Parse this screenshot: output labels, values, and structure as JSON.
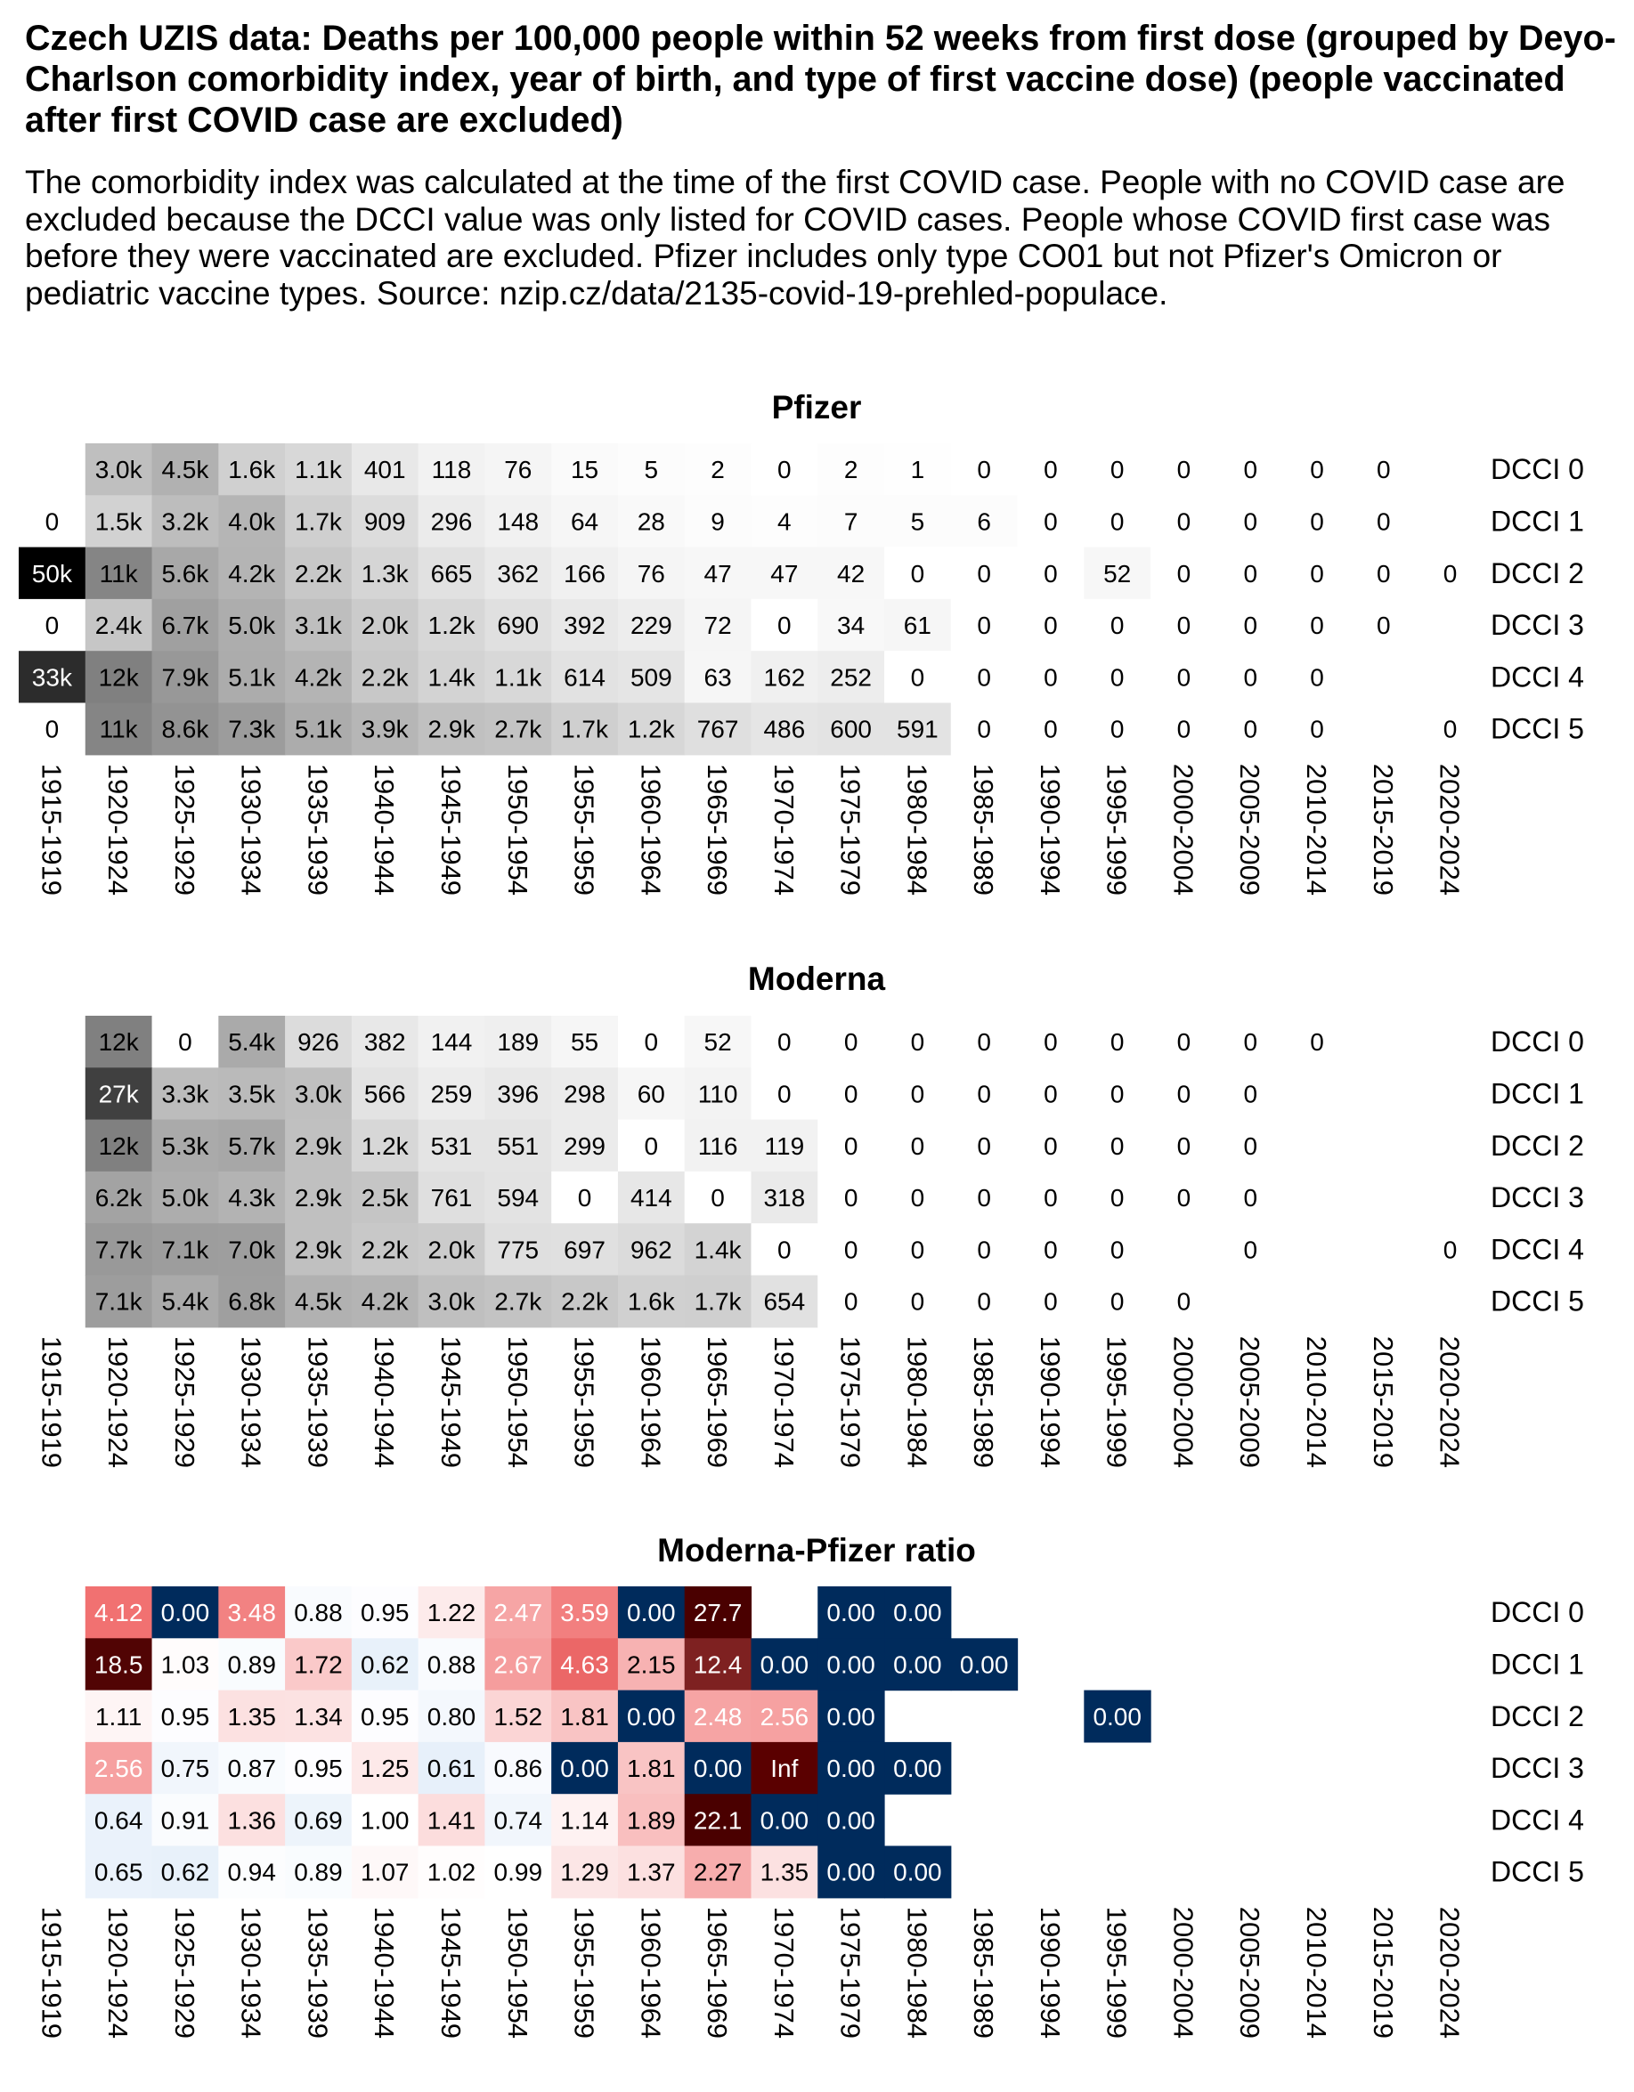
{
  "header": {
    "title": "Czech UZIS data: Deaths per 100,000 people within 52 weeks from first dose (grouped by Deyo-Charlson comorbidity index, year of birth, and type of first vaccine dose) (people vaccinated after first COVID case are excluded)",
    "subtitle": "The comorbidity index was calculated at the time of the first COVID case. People with no COVID case are excluded because the DCCI value was only listed for COVID cases. People whose COVID first case was before they were vaccinated are excluded. Pfizer includes only type CO01 but not Pfizer's Omicron or pediatric vaccine types. Source: nzip.cz/data/2135-covid-19-prehled-populace."
  },
  "chart_data": [
    {
      "type": "heatmap",
      "title": "Pfizer",
      "color_scale": {
        "type": "grayscale-sqrt",
        "low": "#ffffff",
        "high": "#000000",
        "max": 50000
      },
      "columns": [
        "1915-1919",
        "1920-1924",
        "1925-1929",
        "1930-1934",
        "1935-1939",
        "1940-1944",
        "1945-1949",
        "1950-1954",
        "1955-1959",
        "1960-1964",
        "1965-1969",
        "1970-1974",
        "1975-1979",
        "1980-1984",
        "1985-1989",
        "1990-1994",
        "1995-1999",
        "2000-2004",
        "2005-2009",
        "2010-2014",
        "2015-2019",
        "2020-2024"
      ],
      "rows": [
        "DCCI 0",
        "DCCI 1",
        "DCCI 2",
        "DCCI 3",
        "DCCI 4",
        "DCCI 5"
      ],
      "values": [
        [
          null,
          3000,
          4500,
          1600,
          1100,
          401,
          118,
          76,
          15,
          5,
          2,
          0,
          2,
          1,
          0,
          0,
          0,
          0,
          0,
          0,
          0,
          null
        ],
        [
          0,
          1500,
          3200,
          4000,
          1700,
          909,
          296,
          148,
          64,
          28,
          9,
          4,
          7,
          5,
          6,
          0,
          0,
          0,
          0,
          0,
          0,
          null
        ],
        [
          50000,
          11000,
          5600,
          4200,
          2200,
          1300,
          665,
          362,
          166,
          76,
          47,
          47,
          42,
          0,
          0,
          0,
          52,
          0,
          0,
          0,
          0,
          0
        ],
        [
          0,
          2400,
          6700,
          5000,
          3100,
          2000,
          1200,
          690,
          392,
          229,
          72,
          0,
          34,
          61,
          0,
          0,
          0,
          0,
          0,
          0,
          0,
          null
        ],
        [
          33000,
          12000,
          7900,
          5100,
          4200,
          2200,
          1400,
          1100,
          614,
          509,
          63,
          162,
          252,
          0,
          0,
          0,
          0,
          0,
          0,
          0,
          null,
          null
        ],
        [
          0,
          11000,
          8600,
          7300,
          5100,
          3900,
          2900,
          2700,
          1700,
          1200,
          767,
          486,
          600,
          591,
          0,
          0,
          0,
          0,
          0,
          0,
          null,
          0
        ]
      ],
      "labels": [
        [
          null,
          "3.0k",
          "4.5k",
          "1.6k",
          "1.1k",
          "401",
          "118",
          "76",
          "15",
          "5",
          "2",
          "0",
          "2",
          "1",
          "0",
          "0",
          "0",
          "0",
          "0",
          "0",
          "0",
          null
        ],
        [
          "0",
          "1.5k",
          "3.2k",
          "4.0k",
          "1.7k",
          "909",
          "296",
          "148",
          "64",
          "28",
          "9",
          "4",
          "7",
          "5",
          "6",
          "0",
          "0",
          "0",
          "0",
          "0",
          "0",
          null
        ],
        [
          "50k",
          "11k",
          "5.6k",
          "4.2k",
          "2.2k",
          "1.3k",
          "665",
          "362",
          "166",
          "76",
          "47",
          "47",
          "42",
          "0",
          "0",
          "0",
          "52",
          "0",
          "0",
          "0",
          "0",
          "0"
        ],
        [
          "0",
          "2.4k",
          "6.7k",
          "5.0k",
          "3.1k",
          "2.0k",
          "1.2k",
          "690",
          "392",
          "229",
          "72",
          "0",
          "34",
          "61",
          "0",
          "0",
          "0",
          "0",
          "0",
          "0",
          "0",
          null
        ],
        [
          "33k",
          "12k",
          "7.9k",
          "5.1k",
          "4.2k",
          "2.2k",
          "1.4k",
          "1.1k",
          "614",
          "509",
          "63",
          "162",
          "252",
          "0",
          "0",
          "0",
          "0",
          "0",
          "0",
          "0",
          null,
          null
        ],
        [
          "0",
          "11k",
          "8.6k",
          "7.3k",
          "5.1k",
          "3.9k",
          "2.9k",
          "2.7k",
          "1.7k",
          "1.2k",
          "767",
          "486",
          "600",
          "591",
          "0",
          "0",
          "0",
          "0",
          "0",
          "0",
          null,
          "0"
        ]
      ]
    },
    {
      "type": "heatmap",
      "title": "Moderna",
      "color_scale": {
        "type": "grayscale-sqrt",
        "low": "#ffffff",
        "high": "#000000",
        "max": 50000
      },
      "columns": [
        "1915-1919",
        "1920-1924",
        "1925-1929",
        "1930-1934",
        "1935-1939",
        "1940-1944",
        "1945-1949",
        "1950-1954",
        "1955-1959",
        "1960-1964",
        "1965-1969",
        "1970-1974",
        "1975-1979",
        "1980-1984",
        "1985-1989",
        "1990-1994",
        "1995-1999",
        "2000-2004",
        "2005-2009",
        "2010-2014",
        "2015-2019",
        "2020-2024"
      ],
      "rows": [
        "DCCI 0",
        "DCCI 1",
        "DCCI 2",
        "DCCI 3",
        "DCCI 4",
        "DCCI 5"
      ],
      "values": [
        [
          null,
          12000,
          0,
          5400,
          926,
          382,
          144,
          189,
          55,
          0,
          52,
          0,
          0,
          0,
          0,
          0,
          0,
          0,
          0,
          0,
          null,
          null
        ],
        [
          null,
          27000,
          3300,
          3500,
          3000,
          566,
          259,
          396,
          298,
          60,
          110,
          0,
          0,
          0,
          0,
          0,
          0,
          0,
          0,
          null,
          null,
          null
        ],
        [
          null,
          12000,
          5300,
          5700,
          2900,
          1200,
          531,
          551,
          299,
          0,
          116,
          119,
          0,
          0,
          0,
          0,
          0,
          0,
          0,
          null,
          null,
          null
        ],
        [
          null,
          6200,
          5000,
          4300,
          2900,
          2500,
          761,
          594,
          0,
          414,
          0,
          318,
          0,
          0,
          0,
          0,
          0,
          0,
          0,
          null,
          null,
          null
        ],
        [
          null,
          7700,
          7100,
          7000,
          2900,
          2200,
          2000,
          775,
          697,
          962,
          1400,
          0,
          0,
          0,
          0,
          0,
          0,
          null,
          0,
          null,
          null,
          0
        ],
        [
          null,
          7100,
          5400,
          6800,
          4500,
          4200,
          3000,
          2700,
          2200,
          1600,
          1700,
          654,
          0,
          0,
          0,
          0,
          0,
          0,
          null,
          null,
          null,
          null
        ]
      ],
      "labels": [
        [
          null,
          "12k",
          "0",
          "5.4k",
          "926",
          "382",
          "144",
          "189",
          "55",
          "0",
          "52",
          "0",
          "0",
          "0",
          "0",
          "0",
          "0",
          "0",
          "0",
          "0",
          null,
          null
        ],
        [
          null,
          "27k",
          "3.3k",
          "3.5k",
          "3.0k",
          "566",
          "259",
          "396",
          "298",
          "60",
          "110",
          "0",
          "0",
          "0",
          "0",
          "0",
          "0",
          "0",
          "0",
          null,
          null,
          null
        ],
        [
          null,
          "12k",
          "5.3k",
          "5.7k",
          "2.9k",
          "1.2k",
          "531",
          "551",
          "299",
          "0",
          "116",
          "119",
          "0",
          "0",
          "0",
          "0",
          "0",
          "0",
          "0",
          null,
          null,
          null
        ],
        [
          null,
          "6.2k",
          "5.0k",
          "4.3k",
          "2.9k",
          "2.5k",
          "761",
          "594",
          "0",
          "414",
          "0",
          "318",
          "0",
          "0",
          "0",
          "0",
          "0",
          "0",
          "0",
          null,
          null,
          null
        ],
        [
          null,
          "7.7k",
          "7.1k",
          "7.0k",
          "2.9k",
          "2.2k",
          "2.0k",
          "775",
          "697",
          "962",
          "1.4k",
          "0",
          "0",
          "0",
          "0",
          "0",
          "0",
          null,
          "0",
          null,
          null,
          "0"
        ],
        [
          null,
          "7.1k",
          "5.4k",
          "6.8k",
          "4.5k",
          "4.2k",
          "3.0k",
          "2.7k",
          "2.2k",
          "1.6k",
          "1.7k",
          "654",
          "0",
          "0",
          "0",
          "0",
          "0",
          "0",
          null,
          null,
          null,
          null
        ]
      ]
    },
    {
      "type": "heatmap",
      "title": "Moderna-Pfizer ratio",
      "color_scale": {
        "type": "diverging-log2",
        "low": "#002b5c",
        "mid": "#ffffff",
        "high": "#4a0000",
        "center": 1
      },
      "columns": [
        "1915-1919",
        "1920-1924",
        "1925-1929",
        "1930-1934",
        "1935-1939",
        "1940-1944",
        "1945-1949",
        "1950-1954",
        "1955-1959",
        "1960-1964",
        "1965-1969",
        "1970-1974",
        "1975-1979",
        "1980-1984",
        "1985-1989",
        "1990-1994",
        "1995-1999",
        "2000-2004",
        "2005-2009",
        "2010-2014",
        "2015-2019",
        "2020-2024"
      ],
      "rows": [
        "DCCI 0",
        "DCCI 1",
        "DCCI 2",
        "DCCI 3",
        "DCCI 4",
        "DCCI 5"
      ],
      "values": [
        [
          null,
          4.12,
          0.0,
          3.48,
          0.88,
          0.95,
          1.22,
          2.47,
          3.59,
          0.0,
          27.7,
          null,
          0.0,
          0.0,
          null,
          null,
          null,
          null,
          null,
          null,
          null,
          null
        ],
        [
          null,
          18.5,
          1.03,
          0.89,
          1.72,
          0.62,
          0.88,
          2.67,
          4.63,
          2.15,
          12.4,
          0.0,
          0.0,
          0.0,
          0.0,
          null,
          null,
          null,
          null,
          null,
          null,
          null
        ],
        [
          null,
          1.11,
          0.95,
          1.35,
          1.34,
          0.95,
          0.8,
          1.52,
          1.81,
          0.0,
          2.48,
          2.56,
          0.0,
          null,
          null,
          null,
          0.0,
          null,
          null,
          null,
          null,
          null
        ],
        [
          null,
          2.56,
          0.75,
          0.87,
          0.95,
          1.25,
          0.61,
          0.86,
          0.0,
          1.81,
          0.0,
          "Inf",
          0.0,
          0.0,
          null,
          null,
          null,
          null,
          null,
          null,
          null,
          null
        ],
        [
          null,
          0.64,
          0.91,
          1.36,
          0.69,
          1.0,
          1.41,
          0.74,
          1.14,
          1.89,
          22.1,
          0.0,
          0.0,
          null,
          null,
          null,
          null,
          null,
          null,
          null,
          null,
          null
        ],
        [
          null,
          0.65,
          0.62,
          0.94,
          0.89,
          1.07,
          1.02,
          0.99,
          1.29,
          1.37,
          2.27,
          1.35,
          0.0,
          0.0,
          null,
          null,
          null,
          null,
          null,
          null,
          null,
          null
        ]
      ],
      "labels": [
        [
          null,
          "4.12",
          "0.00",
          "3.48",
          "0.88",
          "0.95",
          "1.22",
          "2.47",
          "3.59",
          "0.00",
          "27.7",
          null,
          "0.00",
          "0.00",
          null,
          null,
          null,
          null,
          null,
          null,
          null,
          null
        ],
        [
          null,
          "18.5",
          "1.03",
          "0.89",
          "1.72",
          "0.62",
          "0.88",
          "2.67",
          "4.63",
          "2.15",
          "12.4",
          "0.00",
          "0.00",
          "0.00",
          "0.00",
          null,
          null,
          null,
          null,
          null,
          null,
          null
        ],
        [
          null,
          "1.11",
          "0.95",
          "1.35",
          "1.34",
          "0.95",
          "0.80",
          "1.52",
          "1.81",
          "0.00",
          "2.48",
          "2.56",
          "0.00",
          null,
          null,
          null,
          "0.00",
          null,
          null,
          null,
          null,
          null
        ],
        [
          null,
          "2.56",
          "0.75",
          "0.87",
          "0.95",
          "1.25",
          "0.61",
          "0.86",
          "0.00",
          "1.81",
          "0.00",
          "Inf",
          "0.00",
          "0.00",
          null,
          null,
          null,
          null,
          null,
          null,
          null,
          null
        ],
        [
          null,
          "0.64",
          "0.91",
          "1.36",
          "0.69",
          "1.00",
          "1.41",
          "0.74",
          "1.14",
          "1.89",
          "22.1",
          "0.00",
          "0.00",
          null,
          null,
          null,
          null,
          null,
          null,
          null,
          null,
          null
        ],
        [
          null,
          "0.65",
          "0.62",
          "0.94",
          "0.89",
          "1.07",
          "1.02",
          "0.99",
          "1.29",
          "1.37",
          "2.27",
          "1.35",
          "0.00",
          "0.00",
          null,
          null,
          null,
          null,
          null,
          null,
          null,
          null
        ]
      ]
    }
  ]
}
